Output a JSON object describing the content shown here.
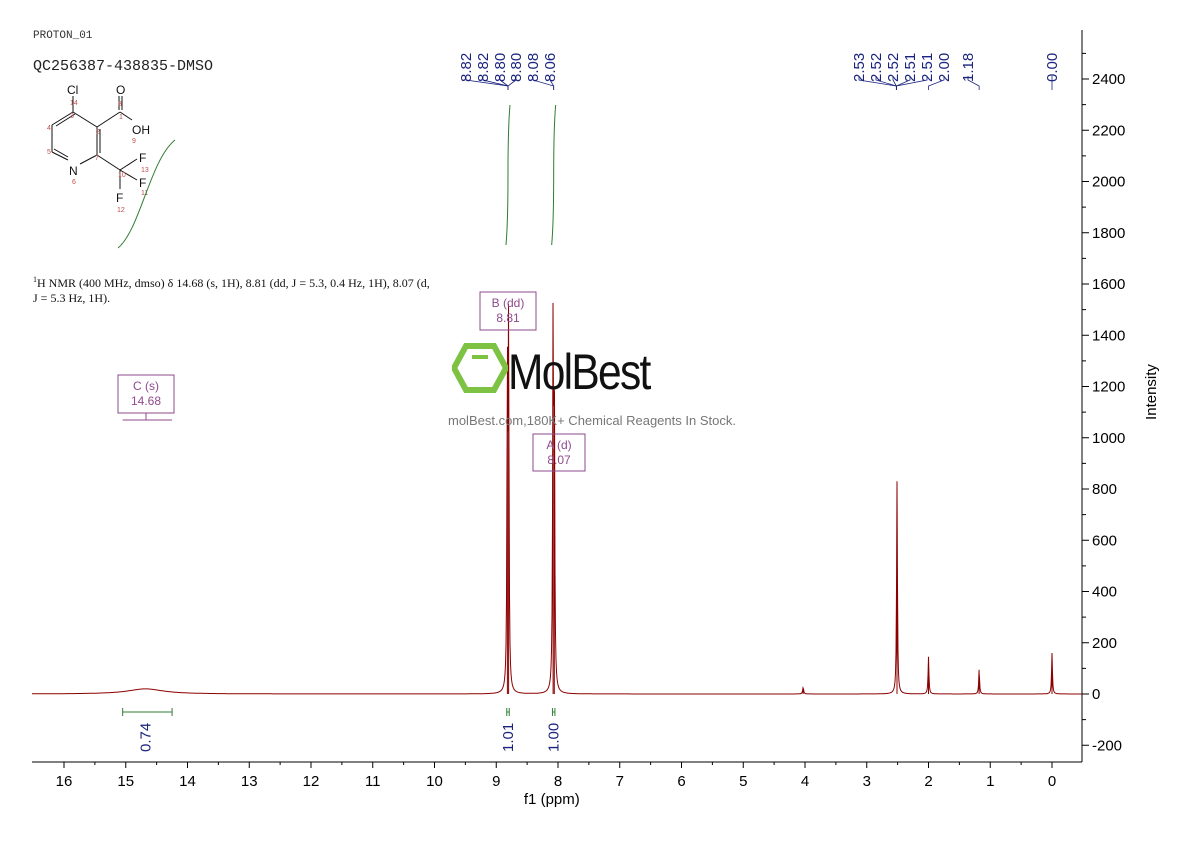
{
  "header": {
    "experiment": "PROTON_01",
    "sample": "QC256387-438835-DMSO"
  },
  "description": {
    "nucleus": "1",
    "text": "H NMR (400 MHz, dmso) δ 14.68 (s, 1H), 8.81 (dd, J = 5.3, 0.4 Hz, 1H), 8.07 (d, J = 5.3 Hz, 1H)."
  },
  "structure": {
    "atoms": [
      "Cl",
      "O",
      "OH",
      "N",
      "F",
      "F",
      "F"
    ],
    "numbers": [
      "14",
      "8",
      "1",
      "3",
      "2",
      "4",
      "9",
      "5",
      "7",
      "13",
      "10",
      "6",
      "11",
      "12"
    ]
  },
  "watermark": {
    "logo": "MolBest",
    "text": "molBest.com,180K+ Chemical Reagents In Stock.",
    "logo_color": "#7dc242"
  },
  "chart_data": {
    "type": "line",
    "xlabel": "f1 (ppm)",
    "ylabel": "Intensity",
    "xlim": [
      16.5,
      -0.5
    ],
    "ylim": [
      -265,
      2520
    ],
    "x_reversed": true,
    "x_ticks": [
      16,
      15,
      14,
      13,
      12,
      11,
      10,
      9,
      8,
      7,
      6,
      5,
      4,
      3,
      2,
      1,
      0
    ],
    "y_ticks": [
      -200,
      0,
      200,
      400,
      600,
      800,
      1000,
      1200,
      1400,
      1600,
      1800,
      2000,
      2200,
      2400
    ],
    "spectrum_color": "#8b0000",
    "peaks": [
      {
        "ppm": 14.68,
        "height": 20,
        "width": 0.35
      },
      {
        "ppm": 8.82,
        "height": 1200,
        "width": 0.004
      },
      {
        "ppm": 8.8,
        "height": 1380,
        "width": 0.004
      },
      {
        "ppm": 8.08,
        "height": 1390,
        "width": 0.004
      },
      {
        "ppm": 8.06,
        "height": 1200,
        "width": 0.004
      },
      {
        "ppm": 4.03,
        "height": 25,
        "width": 0.01
      },
      {
        "ppm": 2.51,
        "height": 830,
        "width": 0.005
      },
      {
        "ppm": 2.0,
        "height": 145,
        "width": 0.004
      },
      {
        "ppm": 1.18,
        "height": 95,
        "width": 0.005
      },
      {
        "ppm": 0.0,
        "height": 160,
        "width": 0.004
      }
    ],
    "peak_labels": [
      {
        "group": [
          "8.82",
          "8.82",
          "8.80",
          "8.80"
        ],
        "anchor": 8.81
      },
      {
        "group": [
          "8.08",
          "8.06"
        ],
        "anchor": 8.07
      },
      {
        "group": [
          "2.53",
          "2.52",
          "2.52",
          "2.51",
          "2.51"
        ],
        "anchor": 2.52
      },
      {
        "group": [
          "2.00"
        ],
        "anchor": 2.0
      },
      {
        "group": [
          "1.18"
        ],
        "anchor": 1.18
      },
      {
        "group": [
          "0.00"
        ],
        "anchor": 0.0
      }
    ],
    "multiplets": [
      {
        "label": "C (s)",
        "shift": "14.68",
        "range": [
          15.05,
          14.25
        ]
      },
      {
        "label": "B (dd)",
        "shift": "8.81",
        "range": [
          8.83,
          8.79
        ]
      },
      {
        "label": "A (d)",
        "shift": "8.07",
        "range": [
          8.09,
          8.05
        ]
      }
    ],
    "integrals": [
      {
        "value": "0.74",
        "ppm": 14.68,
        "range": [
          15.05,
          14.25
        ]
      },
      {
        "value": "1.01",
        "ppm": 8.81,
        "range": [
          8.83,
          8.79
        ]
      },
      {
        "value": "1.00",
        "ppm": 8.07,
        "range": [
          8.09,
          8.05
        ]
      }
    ],
    "integral_color": "#2e7d32",
    "label_color": "#1a237e",
    "multiplet_color": "#8e4a8e"
  }
}
